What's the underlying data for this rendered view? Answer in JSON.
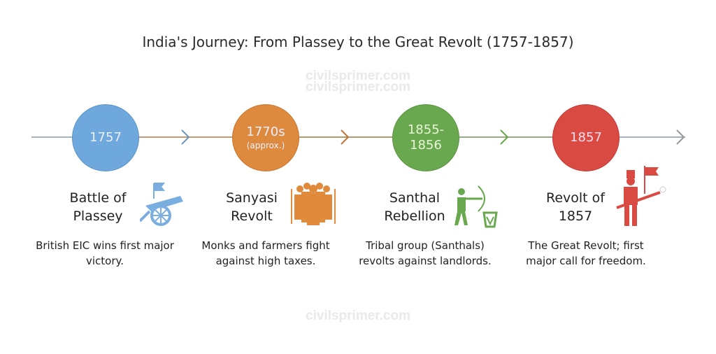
{
  "title": "India's Journey: From Plassey to the Great Revolt (1757-1857)",
  "watermark": "civilsprimer.com",
  "events": [
    {
      "date": "1757",
      "note": "",
      "name1": "Battle of",
      "name2": "Plassey",
      "desc": "British EIC wins first major victory.",
      "color": "#6fa8dc",
      "icon": "cannon-icon"
    },
    {
      "date": "1770s",
      "note": "(approx.)",
      "name1": "Sanyasi",
      "name2": "Revolt",
      "desc": "Monks and farmers fight against high taxes.",
      "color": "#de8a3e",
      "icon": "monks-icon"
    },
    {
      "date": "1855-",
      "note": "1856",
      "name1": "Santhal",
      "name2": "Rebellion",
      "desc": "Tribal group (Santhals) revolts against landlords.",
      "color": "#6aa84f",
      "icon": "archer-icon"
    },
    {
      "date": "1857",
      "note": "",
      "name1": "Revolt of",
      "name2": "1857",
      "desc": "The Great Revolt; first major call for freedom.",
      "color": "#d94a43",
      "icon": "soldier-icon"
    }
  ]
}
